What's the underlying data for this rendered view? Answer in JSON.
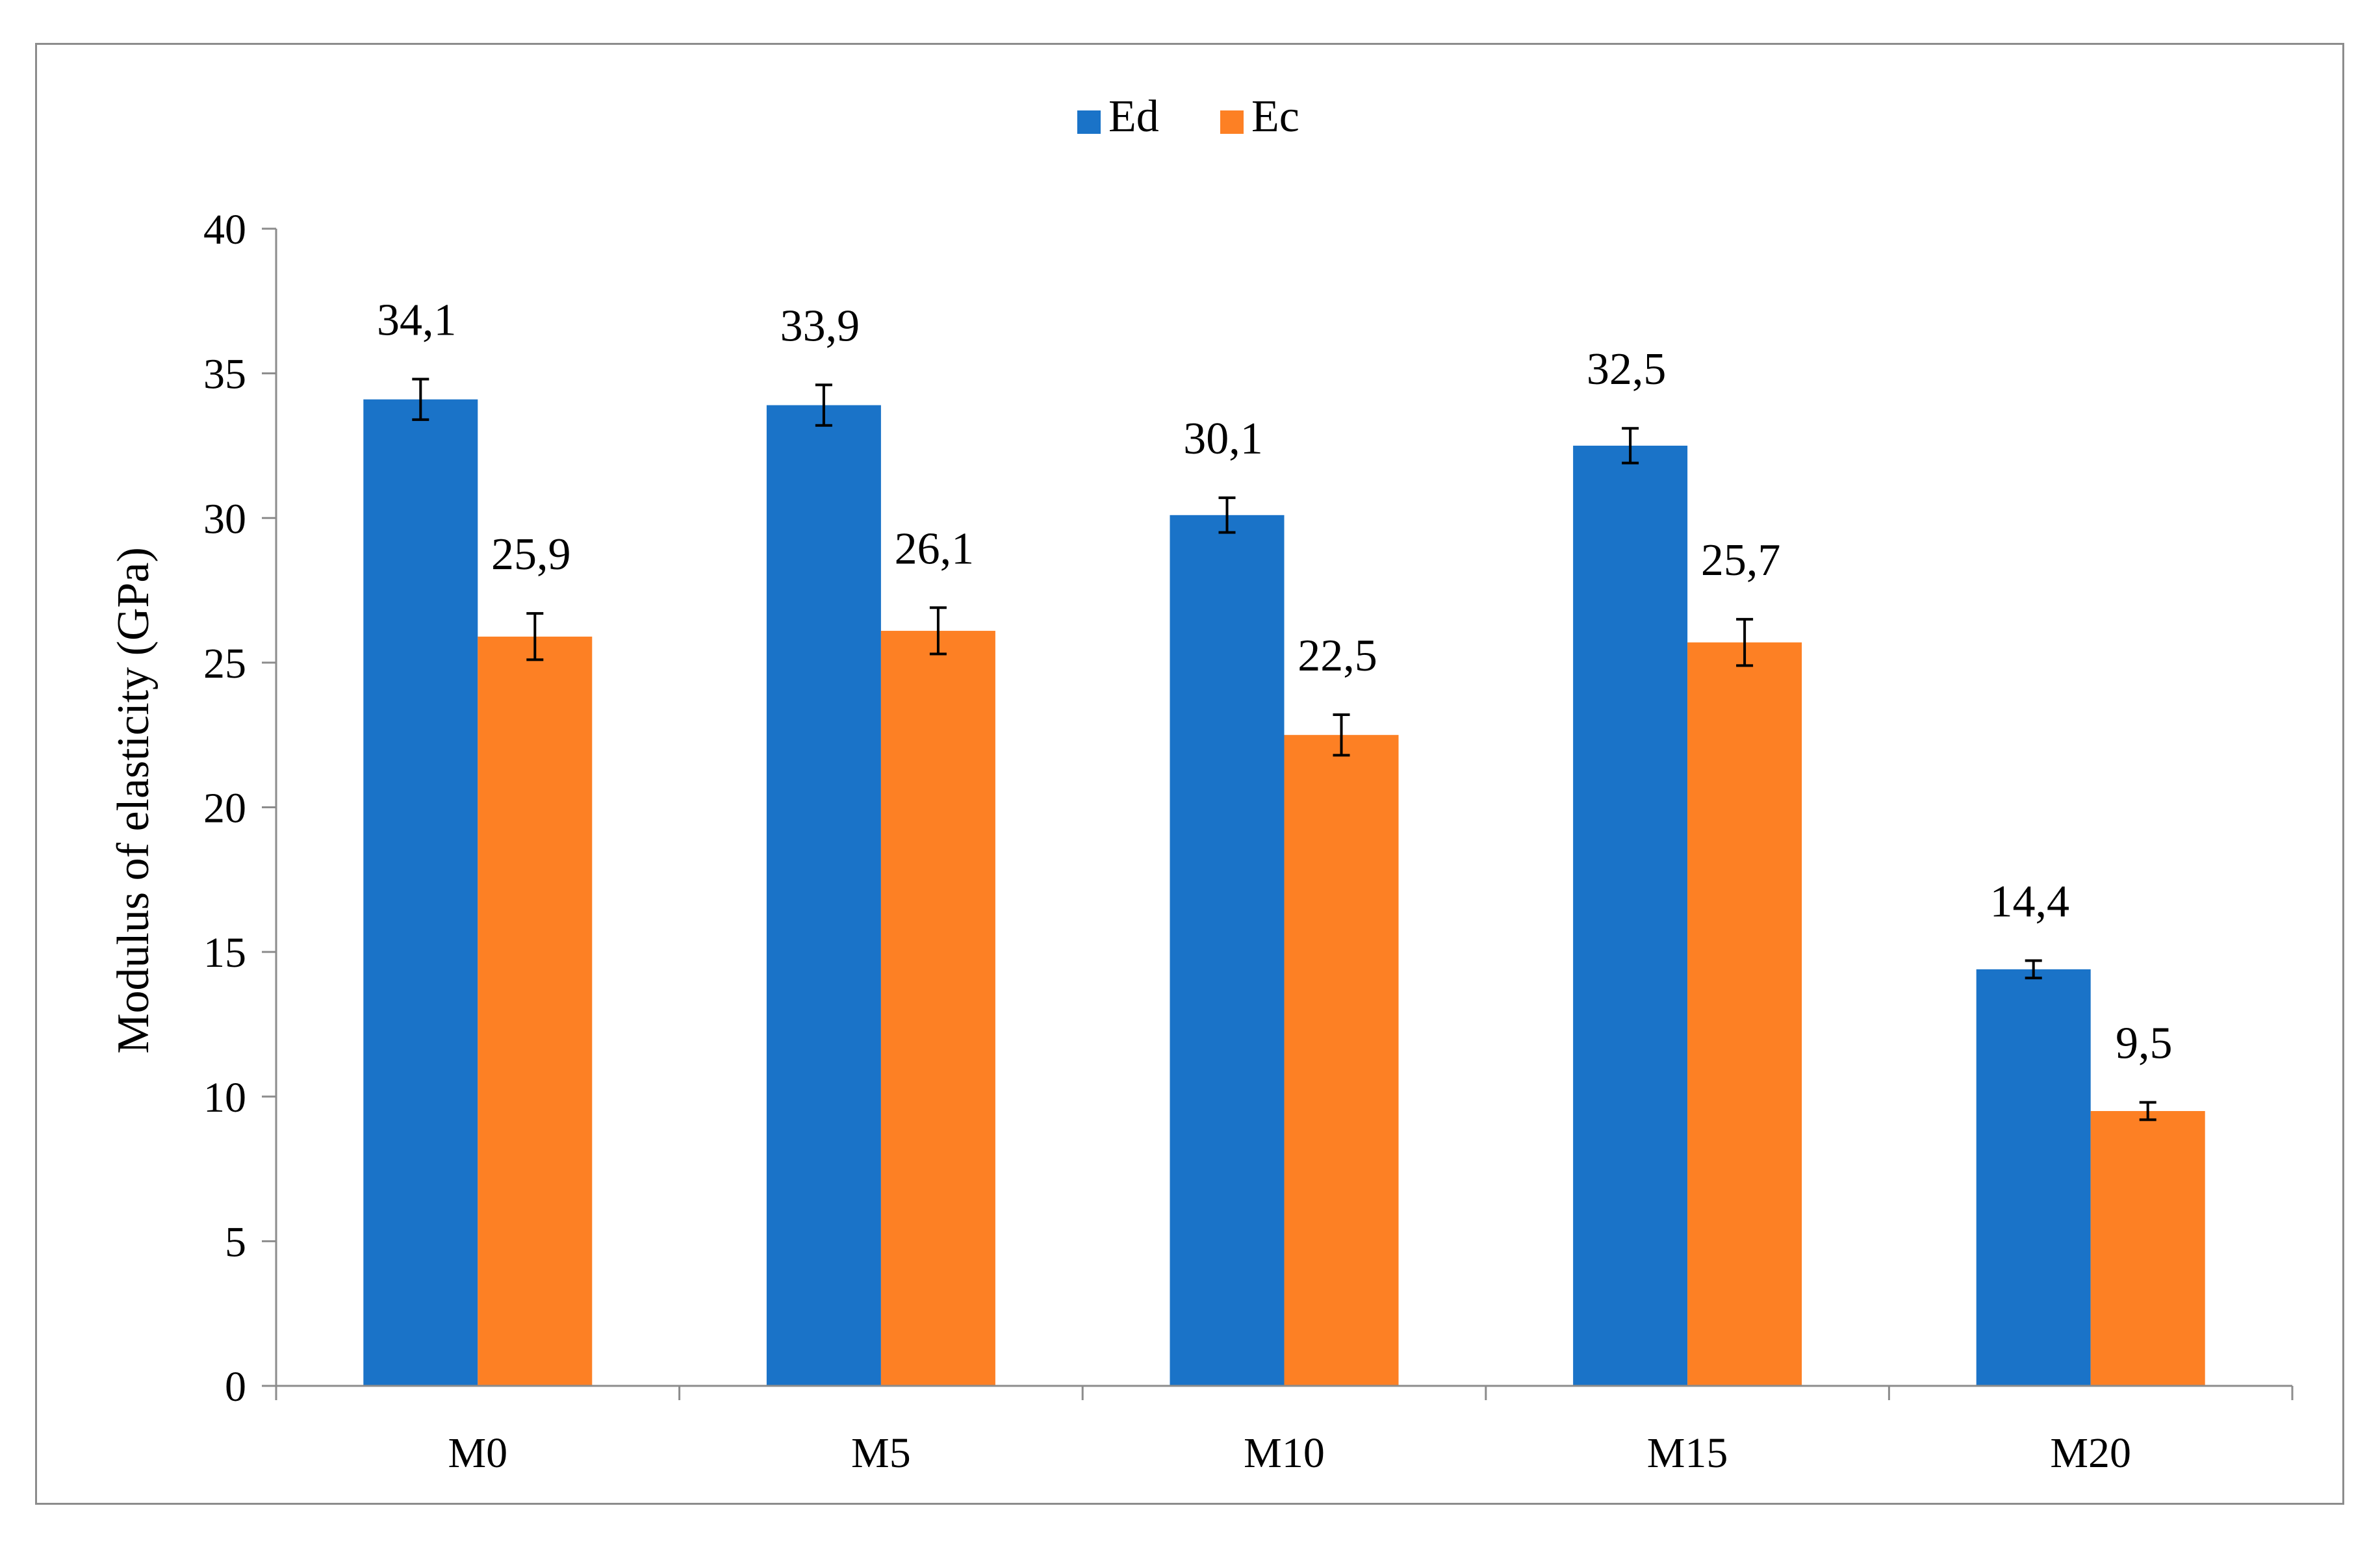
{
  "chart_data": {
    "type": "bar",
    "title": "",
    "xlabel": "",
    "ylabel": "Modulus of elasticity (GPa)",
    "ylim": [
      0,
      40
    ],
    "yticks": [
      0,
      5,
      10,
      15,
      20,
      25,
      30,
      35,
      40
    ],
    "categories": [
      "M0",
      "M5",
      "M10",
      "M15",
      "M20"
    ],
    "series": [
      {
        "name": "Ed",
        "color": "#1a73c8",
        "values": [
          34.1,
          33.9,
          30.1,
          32.5,
          14.4
        ],
        "value_labels": [
          "34,1",
          "33,9",
          "30,1",
          "32,5",
          "14,4"
        ],
        "error": [
          0.7,
          0.7,
          0.6,
          0.6,
          0.3
        ]
      },
      {
        "name": "Ec",
        "color": "#fd8024",
        "values": [
          25.9,
          26.1,
          22.5,
          25.7,
          9.5
        ],
        "value_labels": [
          "25,9",
          "26,1",
          "22,5",
          "25,7",
          "9,5"
        ],
        "error": [
          0.8,
          0.8,
          0.7,
          0.8,
          0.3
        ]
      }
    ],
    "legend_position": "top-center",
    "grid": false
  }
}
